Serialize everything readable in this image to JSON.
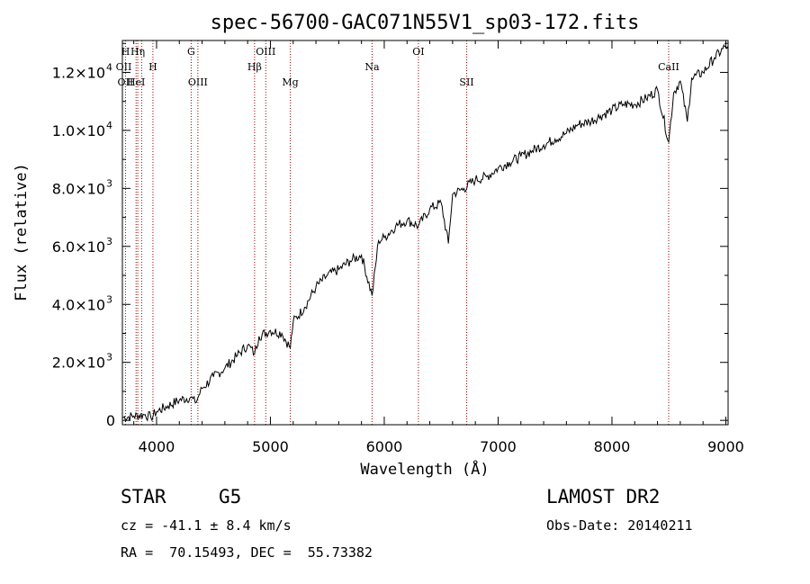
{
  "chart_data": {
    "type": "line",
    "title": "spec-56700-GAC071N55V1_sp03-172.fits",
    "xlabel": "Wavelength (Å)",
    "ylabel": "Flux (relative)",
    "xlim": [
      3700,
      9020
    ],
    "ylim": [
      -150,
      13100
    ],
    "x_ticks": [
      4000,
      5000,
      6000,
      7000,
      8000,
      9000
    ],
    "x_tick_labels": [
      "4000",
      "5000",
      "6000",
      "7000",
      "8000",
      "9000"
    ],
    "y_ticks": [
      0,
      2000,
      4000,
      6000,
      8000,
      10000,
      12000
    ],
    "y_tick_labels": [
      {
        "mant": "0",
        "exp": ""
      },
      {
        "mant": "2.0×10",
        "exp": "3"
      },
      {
        "mant": "4.0×10",
        "exp": "3"
      },
      {
        "mant": "6.0×10",
        "exp": "3"
      },
      {
        "mant": "8.0×10",
        "exp": "3"
      },
      {
        "mant": "1.0×10",
        "exp": "4"
      },
      {
        "mant": "1.2×10",
        "exp": "4"
      }
    ],
    "series": [
      {
        "x": [
          3700,
          3800,
          3900,
          3950,
          4000,
          4100,
          4200,
          4300,
          4340,
          4400,
          4500,
          4600,
          4700,
          4800,
          4861,
          4900,
          5000,
          5100,
          5175,
          5200,
          5300,
          5400,
          5500,
          5600,
          5700,
          5800,
          5893,
          5950,
          6000,
          6100,
          6200,
          6300,
          6400,
          6500,
          6563,
          6600,
          6700,
          6800,
          6900,
          7000,
          7100,
          7200,
          7300,
          7400,
          7500,
          7600,
          7700,
          7800,
          7900,
          8000,
          8100,
          8200,
          8300,
          8400,
          8498,
          8542,
          8600,
          8662,
          8700,
          8800,
          8900,
          9000,
          9020
        ],
        "y": [
          100,
          150,
          200,
          100,
          300,
          500,
          700,
          800,
          600,
          1100,
          1500,
          1800,
          2200,
          2600,
          2300,
          2900,
          3100,
          3000,
          2500,
          3400,
          3900,
          4600,
          5000,
          5200,
          5500,
          5700,
          4300,
          6200,
          6300,
          6700,
          6900,
          6700,
          7300,
          7500,
          6100,
          7800,
          8000,
          8300,
          8400,
          8700,
          8900,
          9100,
          9300,
          9500,
          9700,
          9900,
          10200,
          10300,
          10500,
          10700,
          10900,
          10900,
          11100,
          11400,
          9600,
          11300,
          11700,
          10300,
          11800,
          12000,
          12500,
          12900,
          12900
        ]
      }
    ],
    "line_color": "#000000",
    "reference_line_color": "#a00000",
    "reference_lines": [
      {
        "x": 3727,
        "label": "OII",
        "row": 2
      },
      {
        "x": 3820,
        "label": "HeI",
        "row": 2
      },
      {
        "x": 3835,
        "label": "Hη",
        "row": 0
      },
      {
        "x": 3869,
        "label": "",
        "row": 0
      },
      {
        "x": 3968,
        "label": "H",
        "row": 1
      },
      {
        "x": 4304,
        "label": "G",
        "row": 0
      },
      {
        "x": 4363,
        "label": "OIII",
        "row": 2
      },
      {
        "x": 4861,
        "label": "Hβ",
        "row": 1
      },
      {
        "x": 4959,
        "label": "OIII",
        "row": 0
      },
      {
        "x": 5175,
        "label": "Mg",
        "row": 2
      },
      {
        "x": 5893,
        "label": "Na",
        "row": 1
      },
      {
        "x": 6300,
        "label": "OI",
        "row": 0
      },
      {
        "x": 6724,
        "label": "SII",
        "row": 2
      },
      {
        "x": 8498,
        "label": "CaII",
        "row": 1
      }
    ],
    "extra_labels": [
      {
        "x": 3712,
        "label": "OII",
        "row": 1
      },
      {
        "x": 3728,
        "label": "H",
        "row": 0
      }
    ]
  },
  "info": {
    "class": "STAR",
    "subclass": "G5",
    "survey": "LAMOST DR2",
    "cz": "cz = -41.1 ± 8.4 km/s",
    "obs_date": "Obs-Date: 20140211",
    "coords": "RA =  70.15493, DEC =  55.73382"
  }
}
